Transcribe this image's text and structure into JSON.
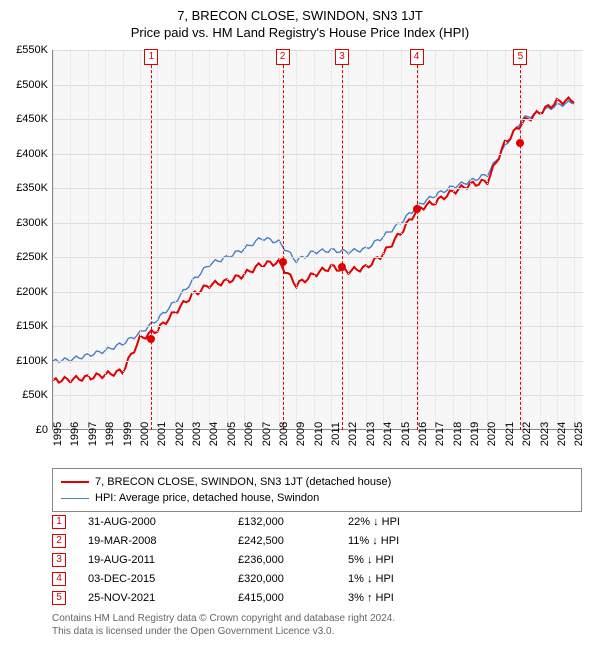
{
  "title": "7, BRECON CLOSE, SWINDON, SN3 1JT",
  "subtitle": "Price paid vs. HM Land Registry's House Price Index (HPI)",
  "chart": {
    "type": "line",
    "background_color": "#f7f7f7",
    "grid_color": "#dddddd",
    "axis_color": "#888888",
    "x_years": [
      1995,
      1996,
      1997,
      1998,
      1999,
      2000,
      2001,
      2002,
      2003,
      2004,
      2005,
      2006,
      2007,
      2008,
      2009,
      2010,
      2011,
      2012,
      2013,
      2014,
      2015,
      2016,
      2017,
      2018,
      2019,
      2020,
      2021,
      2022,
      2023,
      2024,
      2025
    ],
    "x_min": 1995,
    "x_max": 2025.5,
    "ylim": [
      0,
      550000
    ],
    "ytick_step": 50000,
    "y_labels": [
      "£0",
      "£50K",
      "£100K",
      "£150K",
      "£200K",
      "£250K",
      "£300K",
      "£350K",
      "£400K",
      "£450K",
      "£500K",
      "£550K"
    ],
    "label_fontsize": 11,
    "series": [
      {
        "name": "property",
        "label": "7, BRECON CLOSE, SWINDON, SN3 1JT (detached house)",
        "color": "#e00000",
        "line_width": 2,
        "points_yearly": [
          72000,
          73000,
          76000,
          80000,
          85000,
          132000,
          145000,
          170000,
          195000,
          210000,
          215000,
          225000,
          240000,
          242500,
          210000,
          225000,
          236000,
          230000,
          235000,
          255000,
          285000,
          320000,
          330000,
          345000,
          355000,
          360000,
          415000,
          445000,
          460000,
          475000,
          478000
        ]
      },
      {
        "name": "hpi",
        "label": "HPI: Average price, detached house, Swindon",
        "color": "#4a7ec8",
        "line_width": 1.4,
        "points_yearly": [
          100000,
          102000,
          108000,
          115000,
          125000,
          140000,
          160000,
          185000,
          215000,
          240000,
          250000,
          262000,
          278000,
          272000,
          245000,
          258000,
          260000,
          258000,
          262000,
          280000,
          300000,
          325000,
          340000,
          352000,
          360000,
          370000,
          410000,
          450000,
          460000,
          470000,
          475000
        ]
      }
    ],
    "sales": [
      {
        "n": "1",
        "year": 2000.66,
        "price": 132000
      },
      {
        "n": "2",
        "year": 2008.21,
        "price": 242500
      },
      {
        "n": "3",
        "year": 2011.63,
        "price": 236000
      },
      {
        "n": "4",
        "year": 2015.92,
        "price": 320000
      },
      {
        "n": "5",
        "year": 2021.9,
        "price": 415000
      }
    ],
    "sale_line_color": "#e00000",
    "sale_marker_color": "#e00000"
  },
  "legend": {
    "items": [
      {
        "label": "7, BRECON CLOSE, SWINDON, SN3 1JT (detached house)",
        "color": "#e00000",
        "width": 2
      },
      {
        "label": "HPI: Average price, detached house, Swindon",
        "color": "#4a7ec8",
        "width": 1.4
      }
    ]
  },
  "sales_table": [
    {
      "n": "1",
      "date": "31-AUG-2000",
      "price": "£132,000",
      "pct": "22% ↓ HPI"
    },
    {
      "n": "2",
      "date": "19-MAR-2008",
      "price": "£242,500",
      "pct": "11% ↓ HPI"
    },
    {
      "n": "3",
      "date": "19-AUG-2011",
      "price": "£236,000",
      "pct": "5% ↓ HPI"
    },
    {
      "n": "4",
      "date": "03-DEC-2015",
      "price": "£320,000",
      "pct": "1% ↓ HPI"
    },
    {
      "n": "5",
      "date": "25-NOV-2021",
      "price": "£415,000",
      "pct": "3% ↑ HPI"
    }
  ],
  "footer": {
    "line1": "Contains HM Land Registry data © Crown copyright and database right 2024.",
    "line2": "This data is licensed under the Open Government Licence v3.0."
  }
}
